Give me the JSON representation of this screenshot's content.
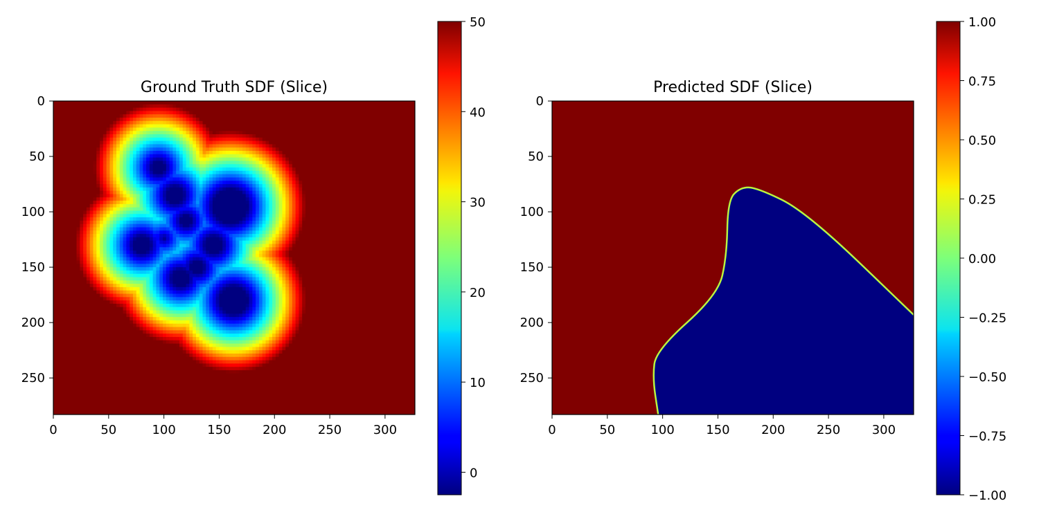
{
  "chart_data": [
    {
      "type": "heatmap",
      "title": "Ground Truth SDF (Slice)",
      "colormap": "jet",
      "xlim": [
        0,
        327
      ],
      "ylim": [
        283,
        0
      ],
      "xticks": [
        0,
        50,
        100,
        150,
        200,
        250,
        300
      ],
      "yticks": [
        0,
        50,
        100,
        150,
        200,
        250
      ],
      "colorbar": {
        "range": [
          -2.5,
          50
        ],
        "ticks": [
          0,
          10,
          20,
          30,
          40,
          50
        ]
      },
      "background_value": 50,
      "blobs": [
        {
          "x": 95,
          "y": 60,
          "r": 8
        },
        {
          "x": 110,
          "y": 85,
          "r": 10
        },
        {
          "x": 120,
          "y": 108,
          "r": 7
        },
        {
          "x": 100,
          "y": 124,
          "r": 2
        },
        {
          "x": 80,
          "y": 130,
          "r": 10
        },
        {
          "x": 130,
          "y": 150,
          "r": 8
        },
        {
          "x": 115,
          "y": 160,
          "r": 10
        },
        {
          "x": 145,
          "y": 130,
          "r": 10
        },
        {
          "x": 160,
          "y": 95,
          "r": 18
        },
        {
          "x": 163,
          "y": 180,
          "r": 15
        }
      ],
      "falloff_radius": 75
    },
    {
      "type": "heatmap",
      "title": "Predicted SDF (Slice)",
      "colormap": "jet",
      "xlim": [
        0,
        327
      ],
      "ylim": [
        283,
        0
      ],
      "xticks": [
        0,
        50,
        100,
        150,
        200,
        250,
        300
      ],
      "yticks": [
        0,
        50,
        100,
        150,
        200,
        250
      ],
      "colorbar": {
        "range": [
          -1.0,
          1.0
        ],
        "ticks": [
          1.0,
          0.75,
          0.5,
          0.25,
          0.0,
          -0.25,
          -0.5,
          -0.75,
          -1.0
        ],
        "tick_labels": [
          "1.00",
          "0.75",
          "0.50",
          "0.25",
          "0.00",
          "−0.25",
          "−0.50",
          "−0.75",
          "−1.00"
        ]
      },
      "inside_value": -1.0,
      "outside_value": 1.0,
      "boundary": [
        [
          96,
          283
        ],
        [
          91,
          250
        ],
        [
          94,
          225
        ],
        [
          150,
          175
        ],
        [
          158,
          140
        ],
        [
          159,
          90
        ],
        [
          170,
          78
        ],
        [
          185,
          78
        ],
        [
          230,
          100
        ],
        [
          327,
          193
        ]
      ]
    }
  ]
}
